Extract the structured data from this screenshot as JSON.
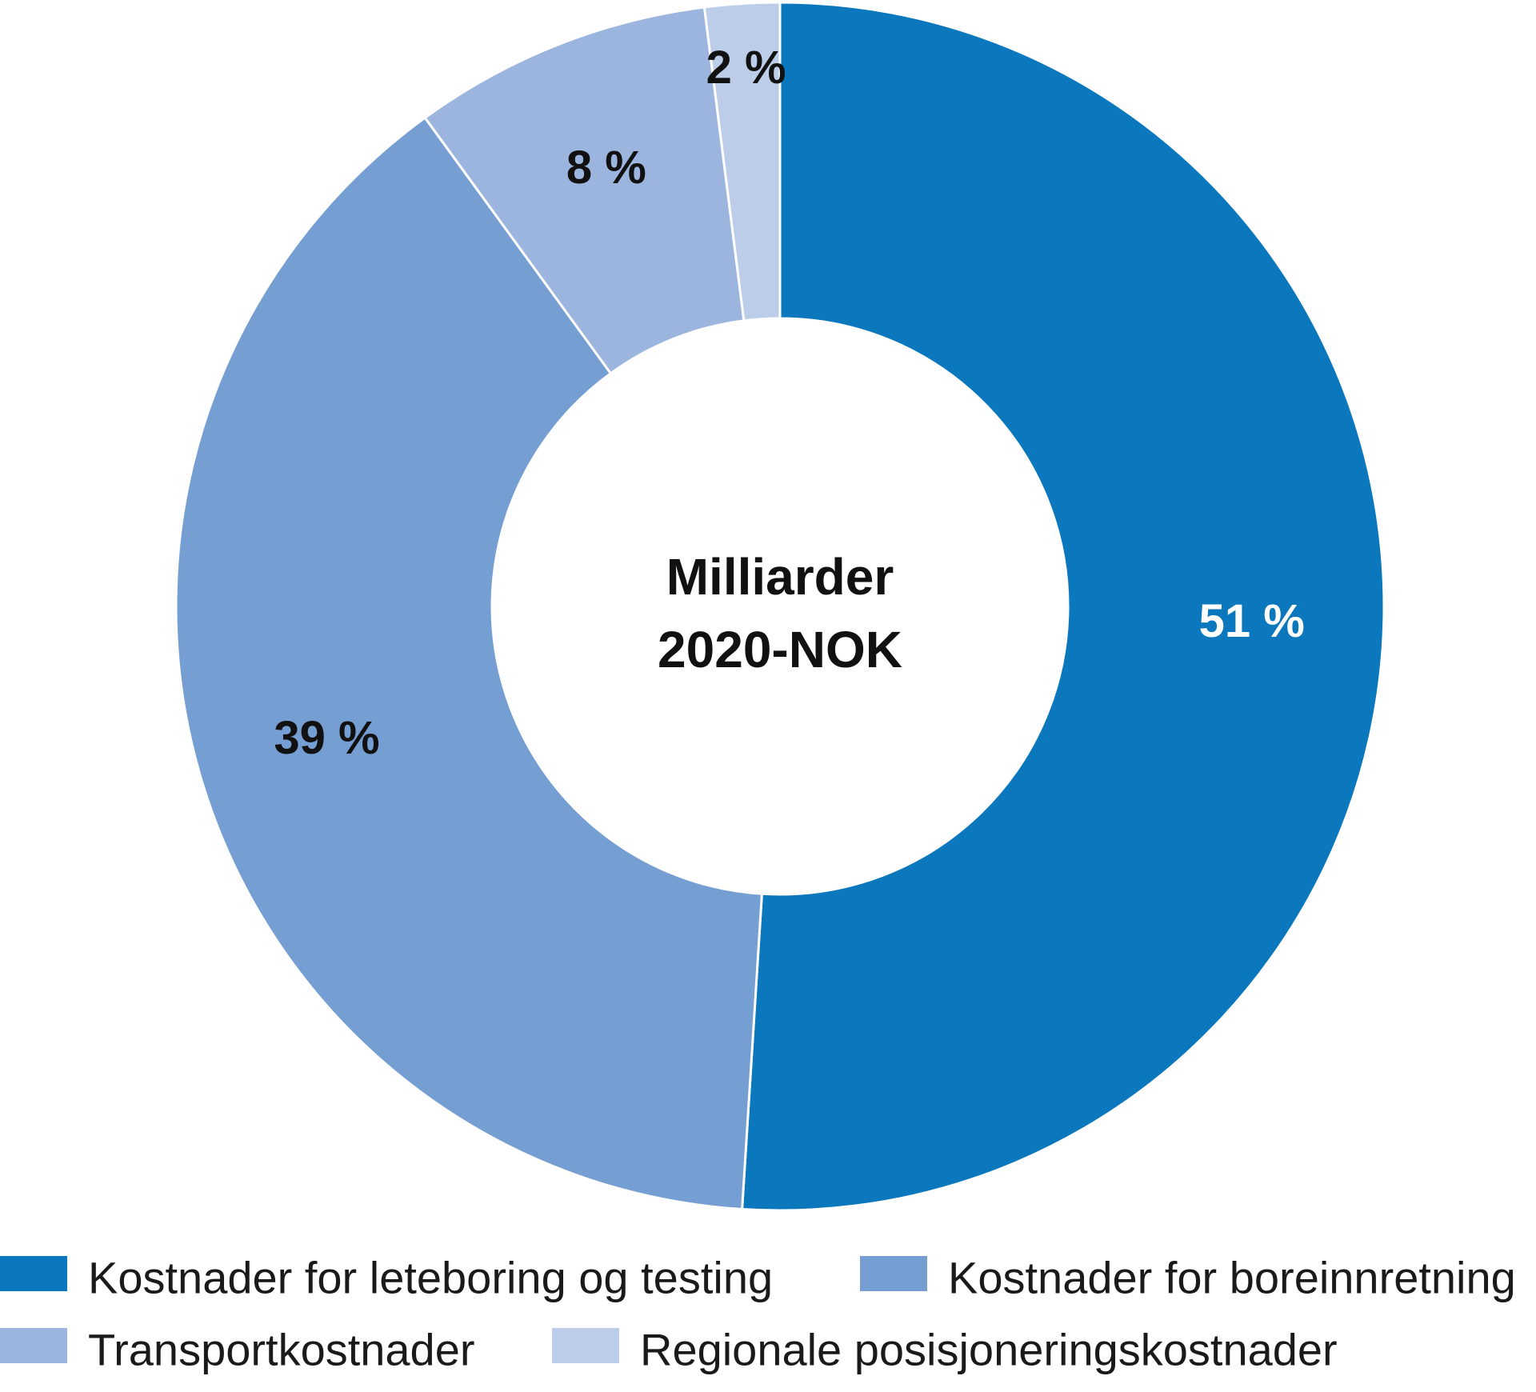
{
  "chart_data": {
    "type": "pie",
    "center_label": [
      "Milliarder",
      "2020-NOK"
    ],
    "categories": [
      "Kostnader for leteboring og testing",
      "Kostnader for boreinnretning",
      "Transportkostnader",
      "Regionale posisjoneringskostnader"
    ],
    "values": [
      51,
      39,
      8,
      2
    ],
    "value_labels": [
      "51 %",
      "39 %",
      "8 %",
      "2 %"
    ],
    "colors": [
      "#0b77bd",
      "#759ed3",
      "#9bb5de",
      "#bccde9"
    ],
    "label_colors": [
      "#ffffff",
      "#111111",
      "#111111",
      "#111111"
    ],
    "legend_placement": "bottom"
  }
}
